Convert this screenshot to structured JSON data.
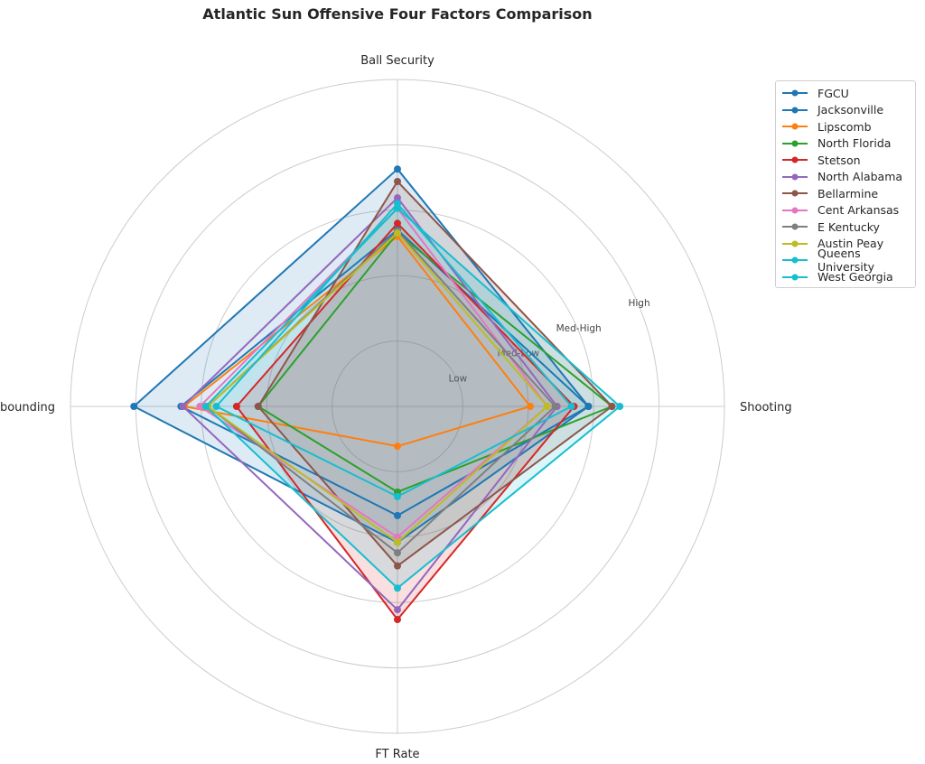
{
  "chart_data": {
    "type": "radar",
    "title": "Atlantic Sun Offensive Four Factors Comparison",
    "axes": [
      "Ball Security",
      "Shooting",
      "FT Rate",
      "Off Rebounding"
    ],
    "radial_tick_labels": [
      "Low",
      "Med-Low",
      "Med-High",
      "High"
    ],
    "radial_range": [
      0,
      5
    ],
    "legend_position": "upper-right, outside plot",
    "grid": true,
    "series": [
      {
        "name": "FGCU",
        "color": "#1f77b4",
        "values": [
          3.63,
          2.92,
          2.08,
          4.03
        ],
        "filled": true
      },
      {
        "name": "Jacksonville",
        "color": "#1f77b4",
        "values": [
          2.7,
          2.92,
          1.67,
          3.31
        ],
        "filled": false
      },
      {
        "name": "Lipscomb",
        "color": "#ff7f0e",
        "values": [
          2.6,
          2.03,
          0.61,
          3.26
        ],
        "filled": false
      },
      {
        "name": "North Florida",
        "color": "#2ca02c",
        "values": [
          2.65,
          3.28,
          1.31,
          2.13
        ],
        "filled": false
      },
      {
        "name": "Stetson",
        "color": "#d62728",
        "values": [
          2.8,
          2.7,
          3.26,
          2.46
        ],
        "filled": true
      },
      {
        "name": "North Alabama",
        "color": "#9467bd",
        "values": [
          3.19,
          2.44,
          3.11,
          3.28
        ],
        "filled": false
      },
      {
        "name": "Bellarmine",
        "color": "#8c564b",
        "values": [
          3.44,
          3.28,
          2.44,
          2.13
        ],
        "filled": true
      },
      {
        "name": "Cent Arkansas",
        "color": "#e377c2",
        "values": [
          3.03,
          2.29,
          2.0,
          3.02
        ],
        "filled": false
      },
      {
        "name": "E Kentucky",
        "color": "#7f7f7f",
        "values": [
          2.68,
          2.41,
          2.24,
          2.9
        ],
        "filled": false
      },
      {
        "name": "Austin Peay",
        "color": "#bcbd22",
        "values": [
          2.65,
          2.29,
          2.08,
          2.9
        ],
        "filled": false
      },
      {
        "name": "Queens University",
        "color": "#17becf",
        "values": [
          3.03,
          3.4,
          2.78,
          2.93
        ],
        "filled": true
      },
      {
        "name": "West Georgia",
        "color": "#17becf",
        "values": [
          3.1,
          2.66,
          1.38,
          2.77
        ],
        "filled": false
      }
    ]
  }
}
